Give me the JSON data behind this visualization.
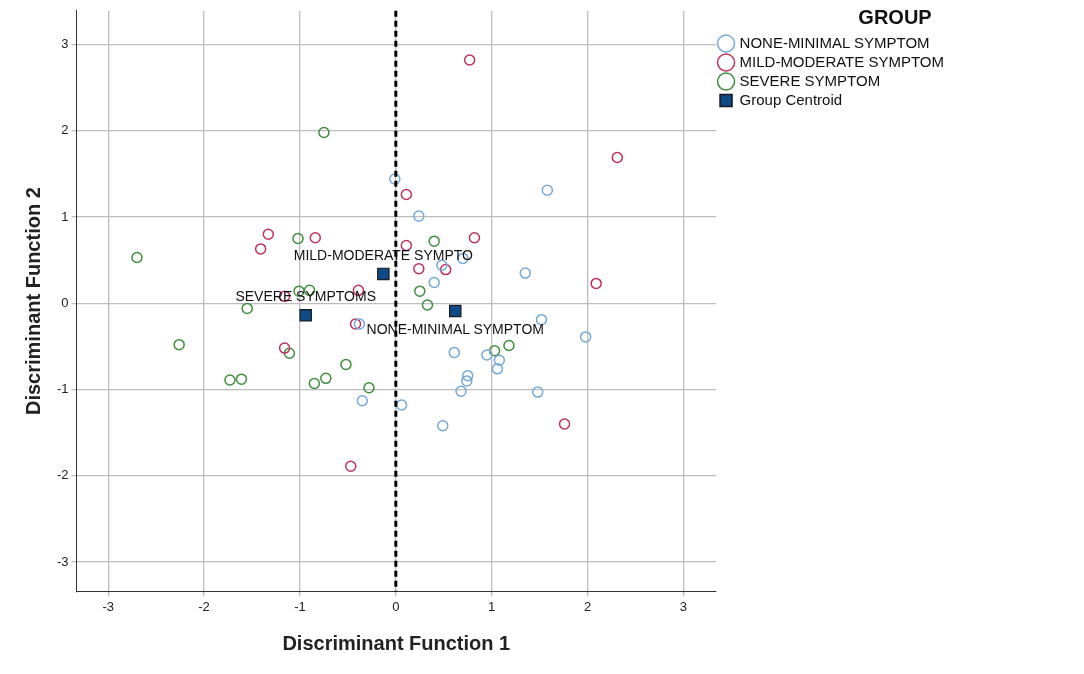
{
  "chart_data": {
    "type": "scatter",
    "xlabel": "Discriminant Function 1",
    "ylabel": "Discriminant Function 2",
    "legend_title": "GROUP",
    "xlim": [
      -3.33,
      3.34
    ],
    "ylim": [
      -3.34,
      3.39
    ],
    "xticks": [
      -3,
      -2,
      -1,
      0,
      1,
      2,
      3
    ],
    "yticks": [
      -3,
      -2,
      -1,
      0,
      1,
      2,
      3
    ],
    "grid": true,
    "legend": "top right",
    "marker": "circle",
    "series": [
      {
        "name": "NONE-MINIMAL SYMPTOM",
        "color": "#74a9d8",
        "x": [
          -0.01,
          0.24,
          1.58,
          0.48,
          0.7,
          0.4,
          1.35,
          1.52,
          1.98,
          0.61,
          0.95,
          1.08,
          1.06,
          0.75,
          0.74,
          0.68,
          1.48,
          0.06,
          0.49,
          -0.38,
          -0.35
        ],
        "values": [
          1.44,
          1.01,
          1.31,
          0.44,
          0.52,
          0.24,
          0.35,
          -0.19,
          -0.39,
          -0.57,
          -0.6,
          -0.66,
          -0.76,
          -0.84,
          -0.9,
          -1.02,
          -1.03,
          -1.18,
          -1.42,
          -0.24,
          -1.13
        ]
      },
      {
        "name": "MILD-MODERATE SYMPTOM",
        "color": "#c0305a",
        "x": [
          0.77,
          2.31,
          0.11,
          0.11,
          0.82,
          0.24,
          0.52,
          2.09,
          -1.33,
          -1.41,
          -0.84,
          -0.39,
          -1.16,
          -0.42,
          -1.16,
          -0.47,
          1.76
        ],
        "values": [
          2.82,
          1.69,
          1.26,
          0.67,
          0.76,
          0.4,
          0.39,
          0.23,
          0.8,
          0.63,
          0.76,
          0.15,
          0.08,
          -0.24,
          -0.52,
          -1.89,
          -1.4
        ]
      },
      {
        "name": "SEVERE SYMPTOM",
        "color": "#3e8e3e",
        "x": [
          -0.75,
          -2.7,
          -1.02,
          0.4,
          -1.01,
          -0.9,
          -1.55,
          -2.26,
          -1.11,
          -0.52,
          -1.73,
          -1.61,
          -0.85,
          -0.73,
          -0.28,
          0.25,
          0.33,
          1.03,
          1.18
        ],
        "values": [
          1.98,
          0.53,
          0.75,
          0.72,
          0.14,
          0.15,
          -0.06,
          -0.48,
          -0.58,
          -0.71,
          -0.89,
          -0.88,
          -0.93,
          -0.87,
          -0.98,
          0.14,
          -0.02,
          -0.55,
          -0.49
        ]
      },
      {
        "name": "Group Centroid",
        "color": "#0e4a85",
        "marker": "square",
        "x": [
          -0.13,
          -0.94,
          0.62
        ],
        "values": [
          0.34,
          -0.14,
          -0.09
        ]
      }
    ],
    "ref_lines": [
      {
        "axis": "x",
        "value": 0,
        "color": "#000000",
        "line_style": "dashed"
      }
    ],
    "annotations": [
      {
        "text": "MILD-MODERATE SYMPTO",
        "x": -0.13,
        "y": 0.34
      },
      {
        "text": "SEVERE SYMPTOMS",
        "x": -0.94,
        "y": -0.14
      },
      {
        "text": "NONE-MINIMAL SYMPTOM",
        "x": 0.62,
        "y": -0.09
      }
    ]
  }
}
